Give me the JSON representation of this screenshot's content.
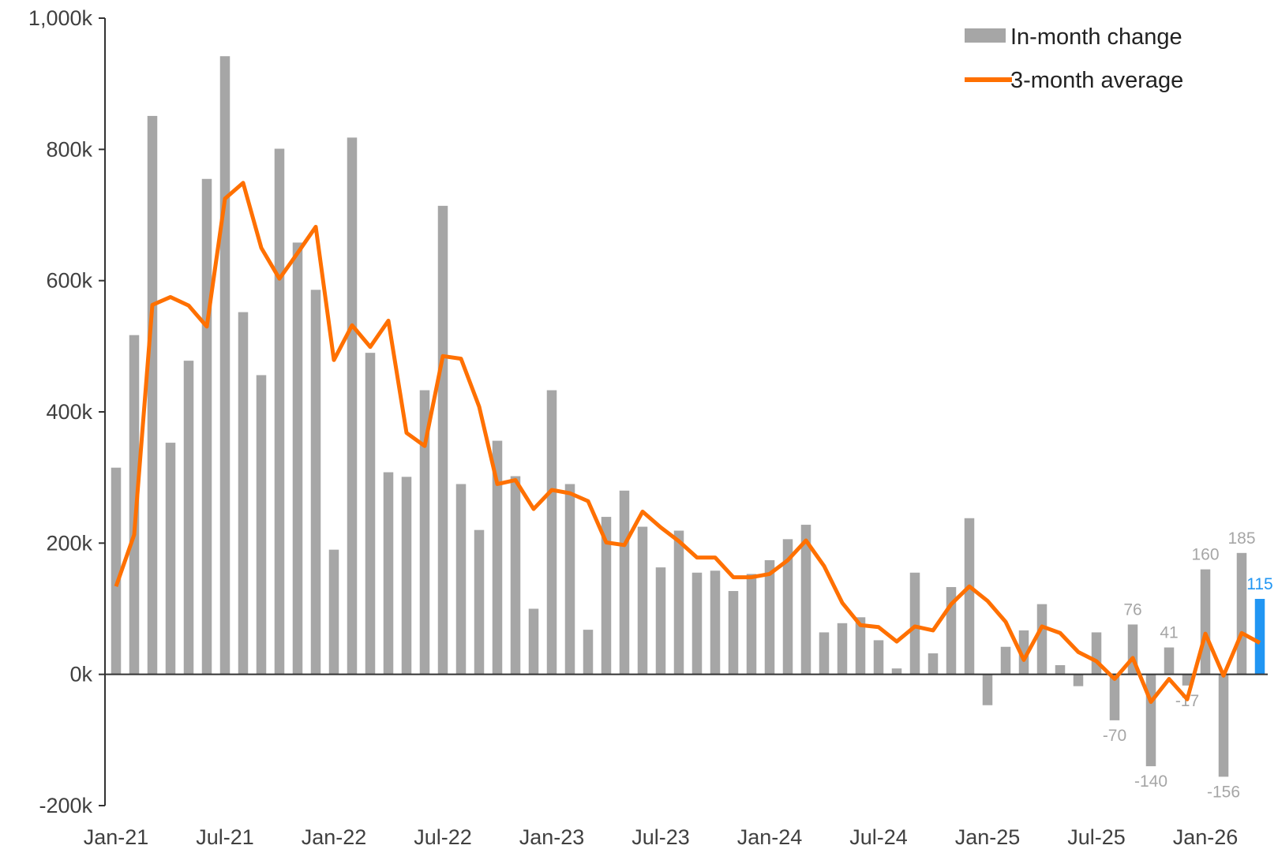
{
  "chart_data": {
    "type": "bar_line",
    "categories": [
      "Jan-21",
      null,
      null,
      null,
      null,
      null,
      "Jul-21",
      null,
      null,
      null,
      null,
      null,
      "Jan-22",
      null,
      null,
      null,
      null,
      null,
      "Jul-22",
      null,
      null,
      null,
      null,
      null,
      "Jan-23",
      null,
      null,
      null,
      null,
      null,
      "Jul-23",
      null,
      null,
      null,
      null,
      null,
      "Jan-24",
      null,
      null,
      null,
      null,
      null,
      "Jul-24",
      null,
      null,
      null,
      null,
      null,
      "Jan-25",
      null,
      null,
      null,
      null,
      null,
      "Jul-25",
      null,
      null,
      null,
      null,
      null,
      "Jan-26",
      null,
      null,
      null
    ],
    "series": [
      {
        "name": "In-month change",
        "kind": "bar",
        "color": "#a6a6a6",
        "values": [
          315,
          517,
          851,
          353,
          478,
          755,
          942,
          552,
          456,
          801,
          658,
          586,
          190,
          818,
          490,
          308,
          301,
          433,
          714,
          290,
          220,
          356,
          302,
          100,
          433,
          290,
          68,
          240,
          280,
          225,
          163,
          219,
          155,
          158,
          127,
          153,
          174,
          206,
          228,
          64,
          78,
          87,
          52,
          9,
          155,
          32,
          133,
          238,
          -47,
          42,
          67,
          107,
          14,
          -18,
          64,
          -70,
          76,
          -140,
          41,
          -17,
          160,
          -156,
          185,
          115
        ],
        "value_labels": [
          null,
          null,
          null,
          null,
          null,
          null,
          null,
          null,
          null,
          null,
          null,
          null,
          null,
          null,
          null,
          null,
          null,
          null,
          null,
          null,
          null,
          null,
          null,
          null,
          null,
          null,
          null,
          null,
          null,
          null,
          null,
          null,
          null,
          null,
          null,
          null,
          null,
          null,
          null,
          null,
          null,
          null,
          null,
          null,
          null,
          null,
          null,
          null,
          null,
          null,
          null,
          null,
          null,
          null,
          null,
          "-70",
          "76",
          "-140",
          "41",
          "-17",
          "160",
          "-156",
          "185",
          "115"
        ],
        "highlight": {
          "index": 63,
          "color": "#2196f3"
        }
      },
      {
        "name": "3-month average",
        "kind": "line",
        "color": "#ff7000",
        "values": [
          134,
          213,
          563,
          575,
          562,
          530,
          725,
          749,
          650,
          603,
          642,
          682,
          479,
          532,
          499,
          539,
          368,
          348,
          485,
          481,
          408,
          290,
          296,
          252,
          281,
          276,
          264,
          201,
          197,
          248,
          224,
          203,
          178,
          178,
          148,
          148,
          153,
          174,
          204,
          165,
          109,
          75,
          72,
          50,
          73,
          67,
          107,
          134,
          112,
          80,
          22,
          73,
          63,
          34,
          20,
          -7,
          25,
          -42,
          -7,
          -38,
          62,
          -2,
          63,
          48
        ]
      }
    ],
    "ylim": [
      -200,
      1000
    ],
    "yticks": [
      {
        "value": -200,
        "label": "-200k"
      },
      {
        "value": 0,
        "label": "0k"
      },
      {
        "value": 200,
        "label": "200k"
      },
      {
        "value": 400,
        "label": "400k"
      },
      {
        "value": 600,
        "label": "600k"
      },
      {
        "value": 800,
        "label": "800k"
      },
      {
        "value": 1000,
        "label": "1,000k"
      }
    ],
    "legend": "top-right",
    "grid": false
  }
}
